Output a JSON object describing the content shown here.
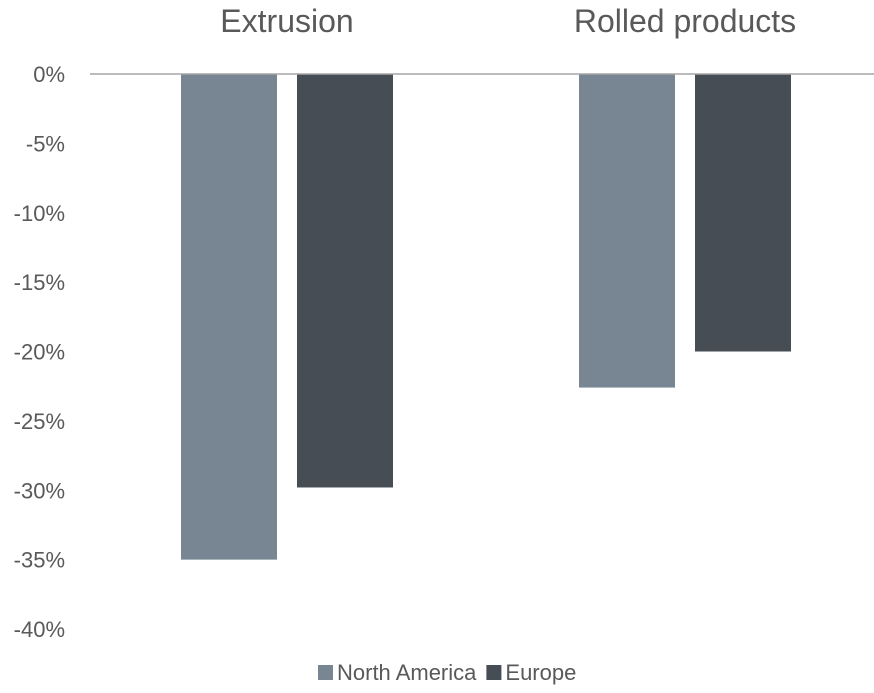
{
  "chart_data": {
    "type": "bar",
    "categories": [
      "Extrusion",
      "Rolled products"
    ],
    "series": [
      {
        "name": "North America",
        "values": [
          -35,
          -22.6
        ],
        "color": "#778692"
      },
      {
        "name": "Europe",
        "values": [
          -29.8,
          -20
        ],
        "color": "#464d55"
      }
    ],
    "ylim": [
      -40,
      0
    ],
    "yticks": [
      0,
      -5,
      -10,
      -15,
      -20,
      -25,
      -30,
      -35,
      -40
    ],
    "ytick_labels": [
      "0%",
      "-5%",
      "-10%",
      "-15%",
      "-20%",
      "-25%",
      "-30%",
      "-35%",
      "-40%"
    ],
    "category_labels_position": "top",
    "grid": false,
    "legend_position": "bottom",
    "axis_line_color": "#a6a6a6",
    "text_color": "#595959"
  }
}
